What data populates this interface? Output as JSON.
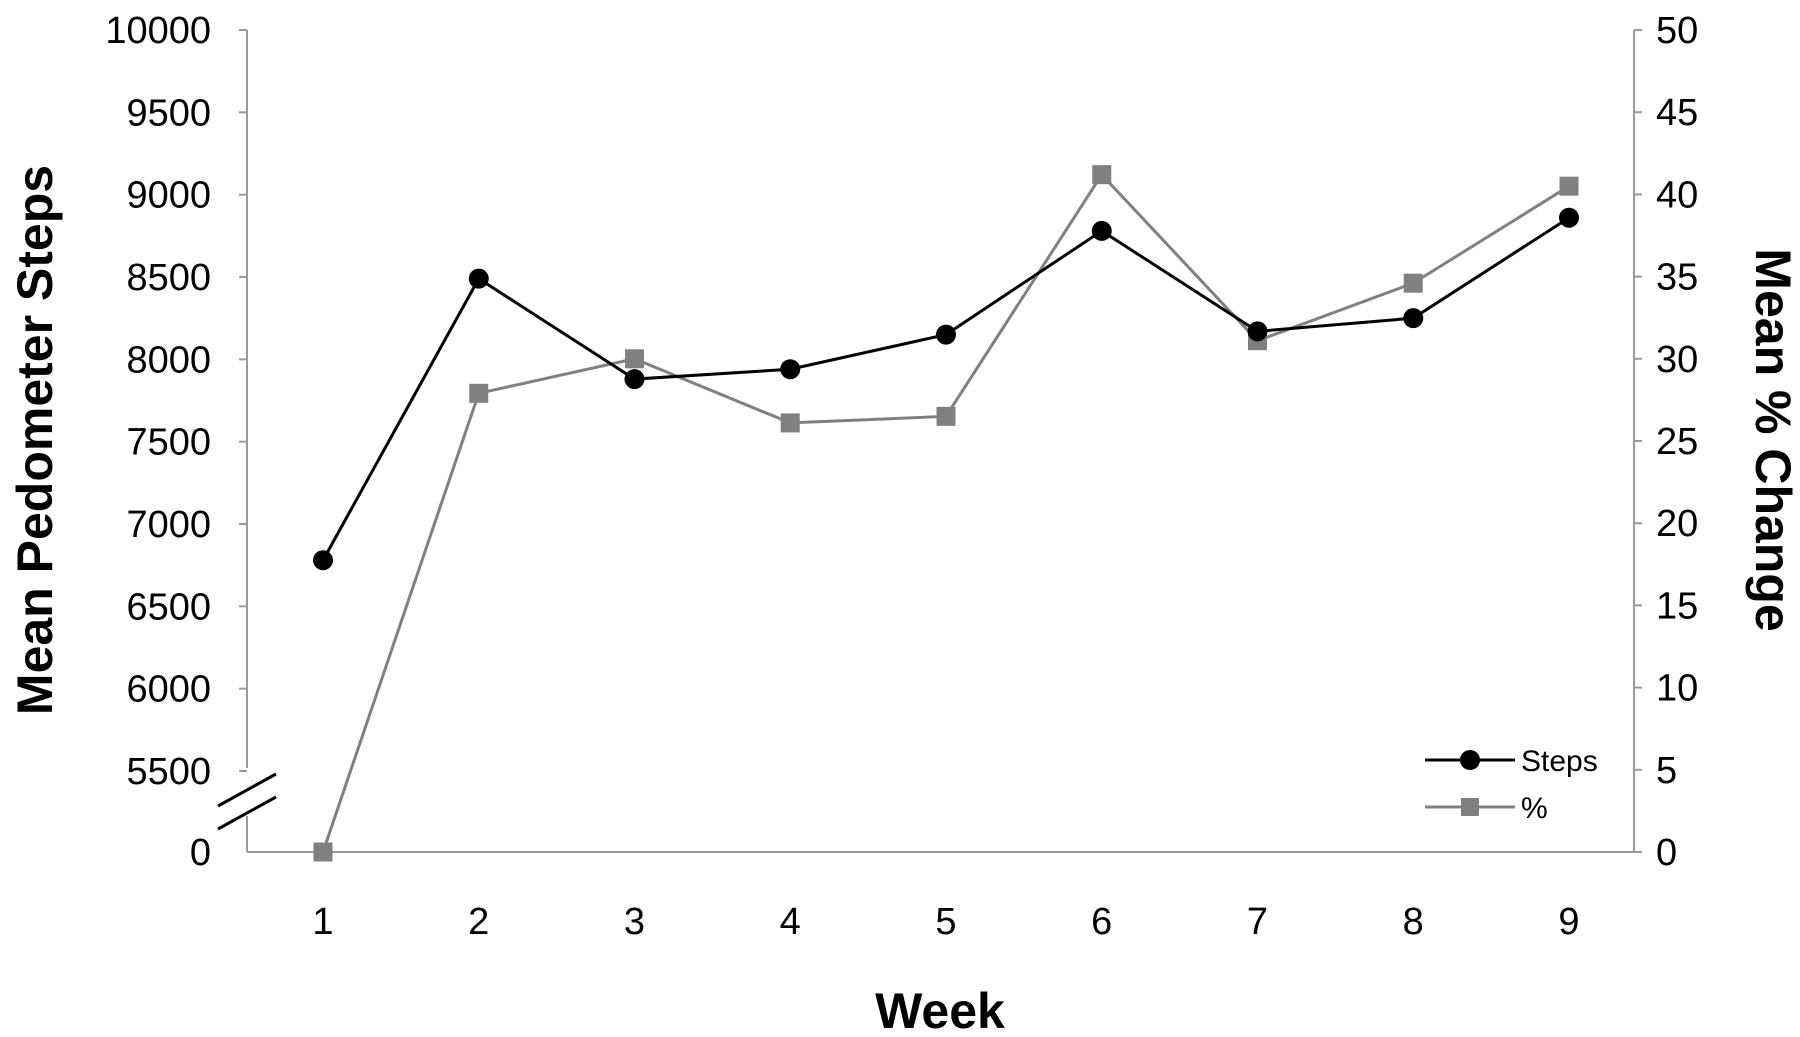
{
  "chart_data": {
    "type": "line",
    "xlabel": "Week",
    "ylabel_left": "Mean Pedometer Steps",
    "ylabel_right": "Mean % Change",
    "x": [
      "1",
      "2",
      "3",
      "4",
      "5",
      "6",
      "7",
      "8",
      "9"
    ],
    "y_left_ticks": [
      "0",
      "5500",
      "6000",
      "6500",
      "7000",
      "7500",
      "8000",
      "8500",
      "9000",
      "9500",
      "10000"
    ],
    "y_left_range": [
      5500,
      10000
    ],
    "y_left_axis_break": true,
    "y_right_ticks": [
      "0",
      "5",
      "10",
      "15",
      "20",
      "25",
      "30",
      "35",
      "40",
      "45",
      "50"
    ],
    "y_right_range": [
      0,
      50
    ],
    "grid": false,
    "legend_position": "bottom-right",
    "series": [
      {
        "name": "Steps",
        "axis": "left",
        "color": "#000000",
        "marker": "circle",
        "values": [
          6780,
          8490,
          7880,
          7940,
          8150,
          8780,
          8170,
          8250,
          8860
        ]
      },
      {
        "name": "%",
        "axis": "right",
        "color": "#808080",
        "marker": "square",
        "values": [
          0,
          27.9,
          30.0,
          26.1,
          26.5,
          41.2,
          31.1,
          34.6,
          40.5
        ]
      }
    ]
  }
}
